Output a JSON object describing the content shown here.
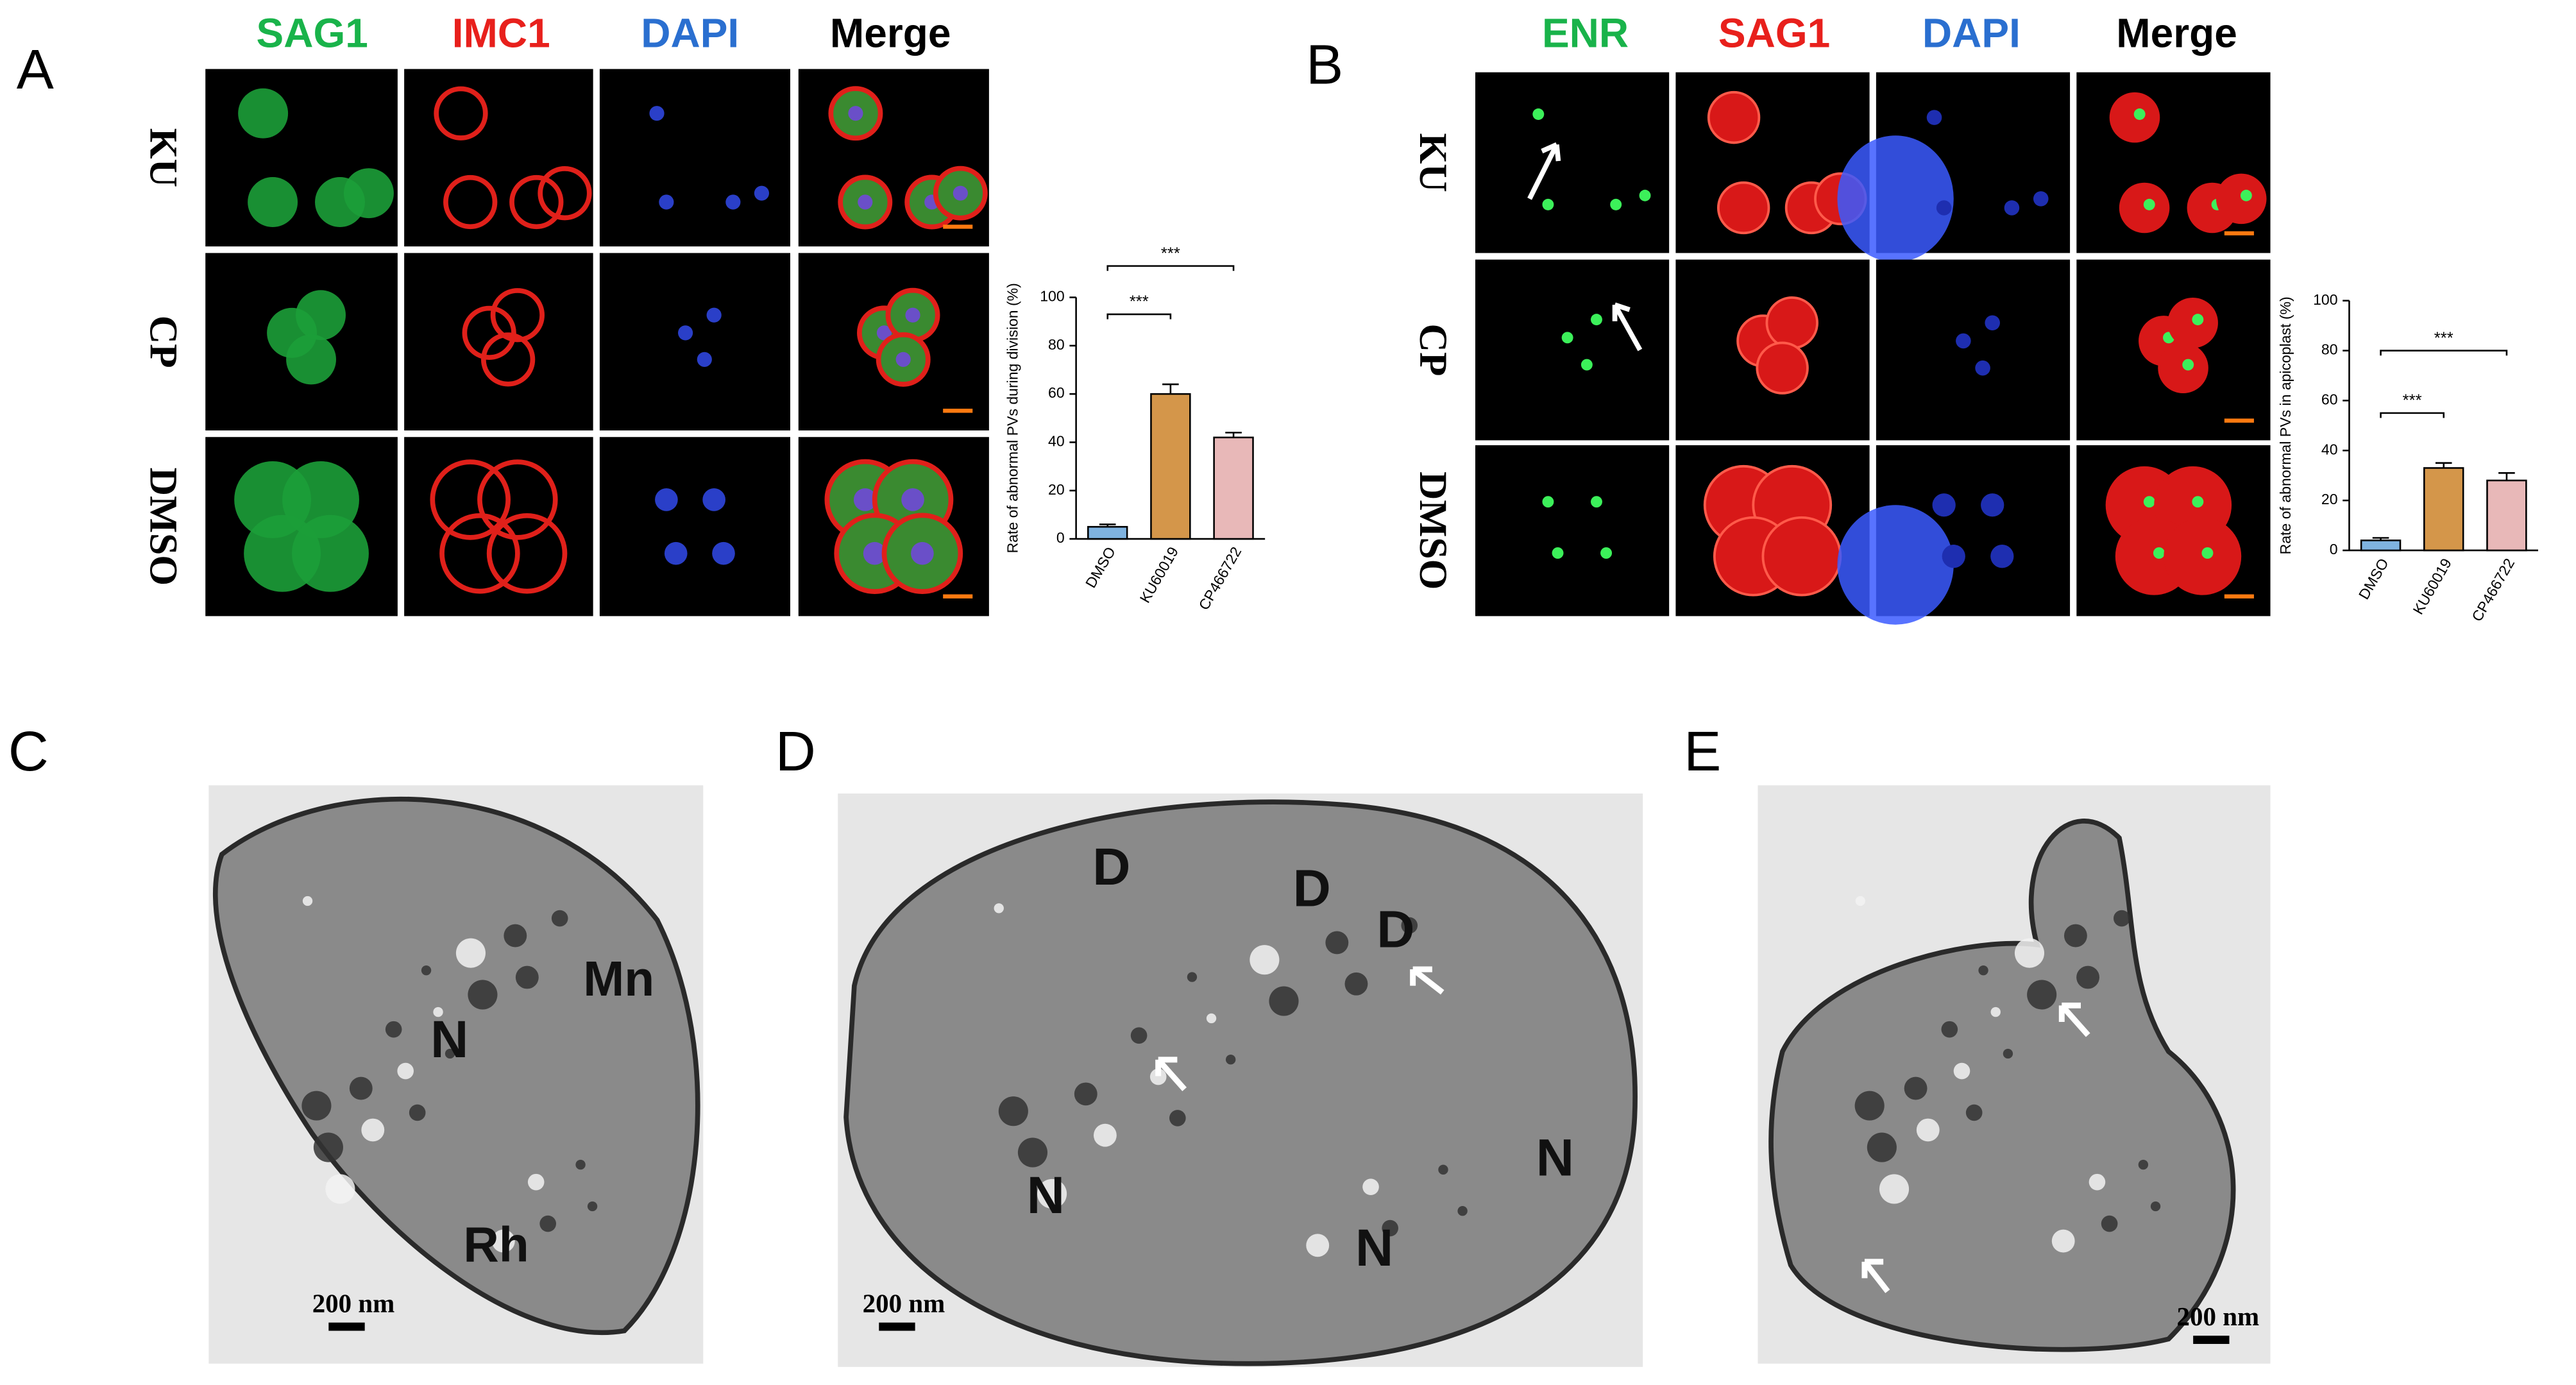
{
  "panels": {
    "A": {
      "label": "A",
      "channels": [
        "SAG1",
        "IMC1",
        "DAPI",
        "Merge"
      ],
      "rows": [
        "KU",
        "CP",
        "DMSO"
      ]
    },
    "B": {
      "label": "B",
      "channels": [
        "ENR",
        "SAG1",
        "DAPI",
        "Merge"
      ],
      "rows": [
        "KU",
        "CP",
        "DMSO"
      ]
    },
    "C": {
      "label": "C",
      "annotations": [
        "Mn",
        "N",
        "Rh"
      ],
      "scale_bar": "200 nm"
    },
    "D": {
      "label": "D",
      "annotations": [
        "D",
        "D",
        "D",
        "N",
        "N",
        "N"
      ],
      "scale_bar": "200 nm"
    },
    "E": {
      "label": "E",
      "scale_bar": "200 nm"
    }
  },
  "chart_data": [
    {
      "type": "bar",
      "y_label": "Rate of abnormal PVs during division (%)",
      "categories": [
        "DMSO",
        "KU60019",
        "CP466722"
      ],
      "values": [
        5,
        60,
        42
      ],
      "errors": [
        1,
        4,
        2
      ],
      "colors": [
        "#7fb3e0",
        "#d4964a",
        "#e8b8b8"
      ],
      "ylim": [
        0,
        100
      ],
      "yticks": [
        0,
        20,
        40,
        60,
        80,
        100
      ],
      "annotations": [
        "***",
        "***"
      ]
    },
    {
      "type": "bar",
      "y_label": "Rate of abnormal PVs in apicoplast (%)",
      "categories": [
        "DMSO",
        "KU60019",
        "CP466722"
      ],
      "values": [
        4,
        33,
        28
      ],
      "errors": [
        1,
        2,
        3
      ],
      "colors": [
        "#7fb3e0",
        "#d4964a",
        "#e8b8b8"
      ],
      "ylim": [
        0,
        100
      ],
      "yticks": [
        0,
        20,
        40,
        60,
        80,
        100
      ],
      "annotations": [
        "***",
        "***"
      ]
    }
  ]
}
